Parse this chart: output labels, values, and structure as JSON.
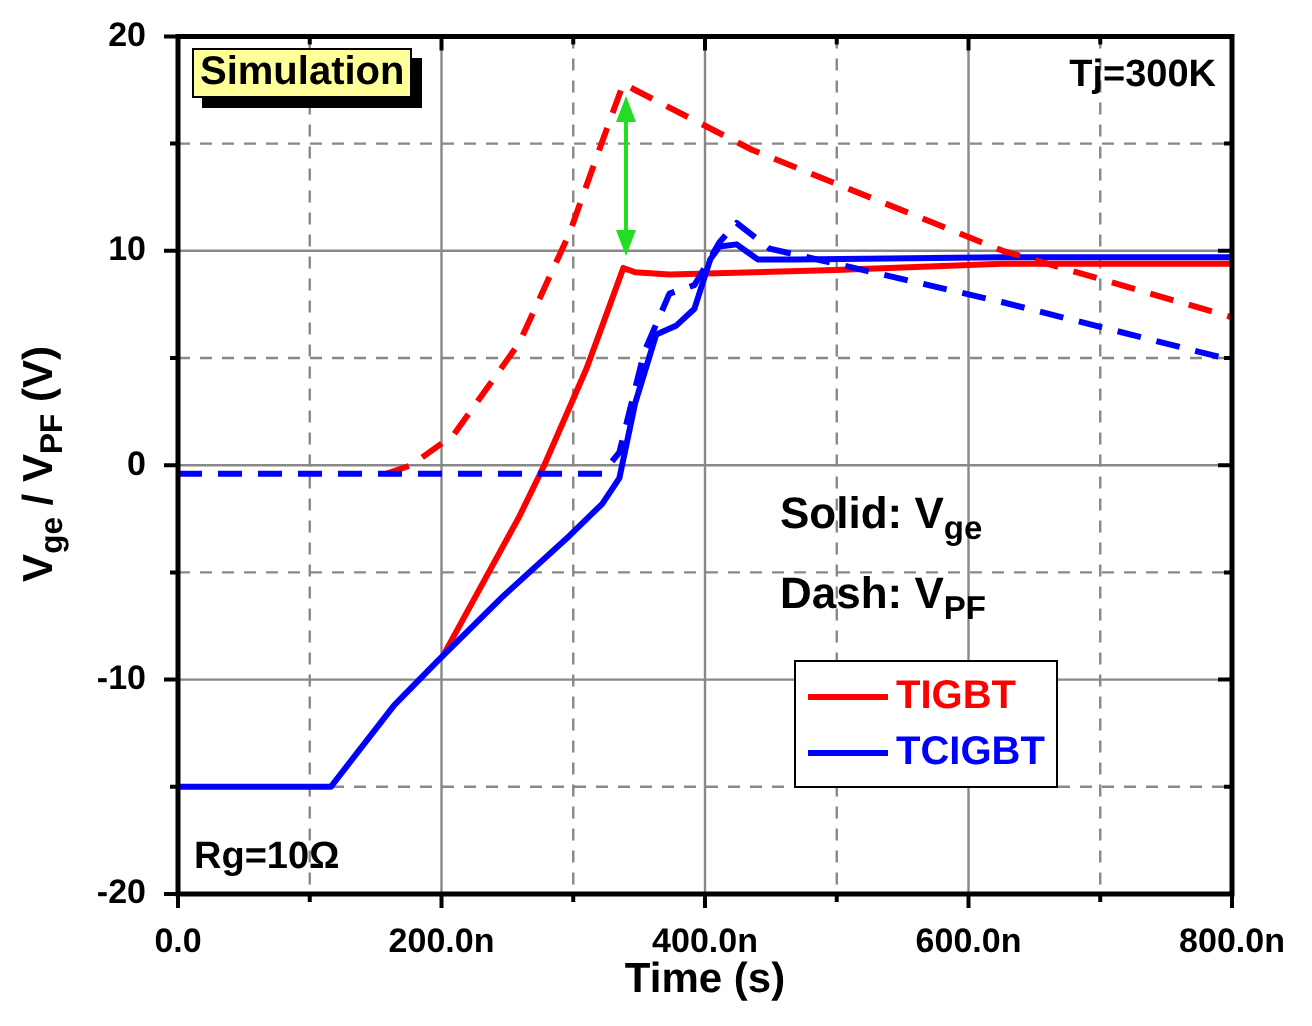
{
  "chart_data": {
    "type": "line",
    "xlabel": "Time (s)",
    "ylabel": "V$_{ge}$ / V$_{PF}$ (V)",
    "annotations": [
      "Simulation",
      "Tj=300K",
      "Solid: V$_{ge}$",
      "Dash: V$_{PF}$",
      "Rg=10Ω"
    ],
    "xlim": [
      0,
      800
    ],
    "ylim": [
      -20,
      20
    ],
    "xticks": [
      {
        "value": 0,
        "label": "0.0"
      },
      {
        "value": 100,
        "label": null
      },
      {
        "value": 200,
        "label": "200.0n"
      },
      {
        "value": 300,
        "label": null
      },
      {
        "value": 400,
        "label": "400.0n"
      },
      {
        "value": 500,
        "label": null
      },
      {
        "value": 600,
        "label": "600.0n"
      },
      {
        "value": 700,
        "label": null
      },
      {
        "value": 800,
        "label": "800.0n"
      }
    ],
    "yticks": [
      -20,
      {
        "value": -15,
        "label": null
      },
      -10,
      {
        "value": -5,
        "label": null
      },
      0,
      {
        "value": 5,
        "label": null
      },
      10,
      {
        "value": 15,
        "label": null
      },
      20
    ],
    "grid": true,
    "legend": "bottom right",
    "marker": "none",
    "series": [
      {
        "name": "TIGBT",
        "color": "#ff0000",
        "line_style": "solid",
        "x": [
          202,
          259,
          278,
          310,
          322,
          338,
          347,
          373,
          499,
          626,
          800
        ],
        "values": [
          -8.8,
          -2.4,
          0,
          4.5,
          6.5,
          9.2,
          9.0,
          8.9,
          9.1,
          9.4,
          9.4
        ]
      },
      {
        "name": "TCIGBT",
        "color": "#0000ff",
        "line_style": "solid",
        "x": [
          0,
          116,
          164,
          196,
          247,
          297,
          322,
          335,
          347,
          363,
          378,
          392,
          404,
          411,
          424,
          440,
          468,
          626,
          800
        ],
        "values": [
          -15,
          -15,
          -11.2,
          -9.2,
          -6.1,
          -3.3,
          -1.8,
          -0.6,
          2.9,
          6.1,
          6.5,
          7.3,
          9.6,
          10.2,
          10.3,
          9.6,
          9.6,
          9.7,
          9.7
        ]
      },
      {
        "color": "#ff0000",
        "line_style": "dashed",
        "x": [
          158,
          177,
          209,
          259,
          297,
          322,
          338,
          347,
          436,
          626,
          800
        ],
        "values": [
          -0.4,
          0,
          1.4,
          5.7,
          10.8,
          15.1,
          17.8,
          17.5,
          14.7,
          10,
          6.9
        ]
      },
      {
        "color": "#0000ff",
        "line_style": "dashed",
        "x": [
          0,
          322,
          335,
          354,
          373,
          392,
          411,
          424,
          449,
          499,
          626,
          800
        ],
        "values": [
          -0.4,
          -0.4,
          0.6,
          5.3,
          8.0,
          8.4,
          10.4,
          11.3,
          10.1,
          9.4,
          7.6,
          4.9
        ]
      }
    ]
  }
}
